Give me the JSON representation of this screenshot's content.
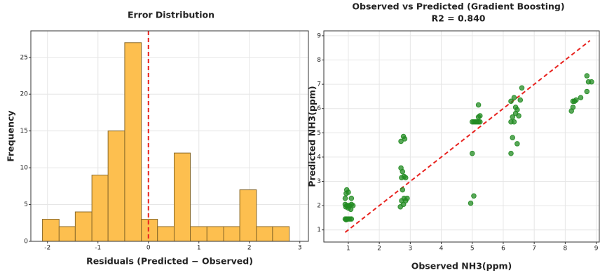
{
  "chart_data": [
    {
      "type": "histogram",
      "title": "Error Distribution",
      "xlabel": "Residuals (Predicted − Observed)",
      "ylabel": "Frequency",
      "bins": [
        -2.1,
        -1.77,
        -1.45,
        -1.12,
        -0.8,
        -0.47,
        -0.14,
        0.18,
        0.51,
        0.83,
        1.16,
        1.49,
        1.81,
        2.14,
        2.46,
        2.79
      ],
      "values": [
        3,
        2,
        4,
        9,
        15,
        27,
        3,
        2,
        12,
        2,
        2,
        2,
        7,
        2,
        2
      ],
      "color": "#fdbf4f",
      "edgecolor": "#8a6a2a",
      "vline": 0,
      "vline_color": "#e8231f",
      "xlim": [
        -2.33,
        3.17
      ],
      "xticks": [
        -2,
        -1,
        0,
        1,
        2,
        3
      ],
      "ylim": [
        0,
        28.6
      ],
      "yticks": [
        0,
        5,
        10,
        15,
        20,
        25
      ],
      "grid": true
    },
    {
      "type": "scatter",
      "title": "Observed vs Predicted (Gradient Boosting)",
      "subtitle": "R2 = 0.840",
      "xlabel": "Observed NH3(ppm)",
      "ylabel": "Predicted NH3(ppm)",
      "x": [
        0.95,
        0.93,
        1.0,
        0.9,
        1.1,
        0.9,
        0.95,
        1.0,
        1.05,
        1.1,
        0.92,
        1.0,
        1.08,
        1.15,
        0.9,
        0.95,
        1.0,
        1.05,
        1.1,
        0.93,
        2.7,
        2.78,
        2.82,
        2.7,
        2.75,
        2.8,
        2.72,
        2.85,
        2.75,
        2.8,
        2.72,
        2.9,
        2.85,
        2.68,
        2.78,
        4.95,
        5.05,
        5.0,
        5.0,
        5.05,
        5.1,
        5.15,
        5.2,
        5.25,
        5.2,
        5.25,
        5.2,
        6.25,
        6.3,
        6.45,
        6.25,
        6.35,
        6.3,
        6.4,
        6.5,
        6.45,
        6.4,
        6.25,
        6.35,
        6.55,
        6.6,
        8.2,
        8.25,
        8.25,
        8.3,
        8.35,
        8.5,
        8.7,
        8.75,
        8.7,
        8.85
      ],
      "values": [
        2.65,
        2.5,
        2.55,
        2.3,
        2.3,
        2.05,
        2.0,
        2.0,
        2.0,
        2.05,
        1.95,
        1.9,
        1.85,
        2.0,
        1.45,
        1.45,
        1.45,
        1.45,
        1.45,
        1.42,
        4.65,
        4.85,
        4.75,
        3.55,
        3.4,
        3.2,
        3.15,
        3.15,
        2.65,
        2.3,
        2.2,
        2.3,
        2.2,
        1.95,
        2.05,
        2.1,
        2.4,
        4.15,
        5.45,
        5.45,
        5.45,
        5.45,
        5.45,
        5.45,
        5.65,
        5.7,
        6.15,
        4.15,
        4.8,
        4.55,
        5.45,
        5.45,
        5.65,
        5.8,
        5.7,
        5.95,
        6.05,
        6.3,
        6.45,
        6.35,
        6.85,
        5.9,
        6.05,
        6.3,
        6.3,
        6.35,
        6.45,
        6.7,
        7.1,
        7.35,
        7.1
      ],
      "color": "#228b22",
      "identity_line": [
        0.9,
        8.8
      ],
      "line_color": "#e8231f",
      "xlim": [
        0.21,
        9.1
      ],
      "xticks": [
        1,
        2,
        3,
        4,
        5,
        6,
        7,
        8,
        9
      ],
      "ylim": [
        0.5,
        9.2
      ],
      "yticks": [
        1,
        2,
        3,
        4,
        5,
        6,
        7,
        8,
        9
      ],
      "grid": true
    }
  ]
}
